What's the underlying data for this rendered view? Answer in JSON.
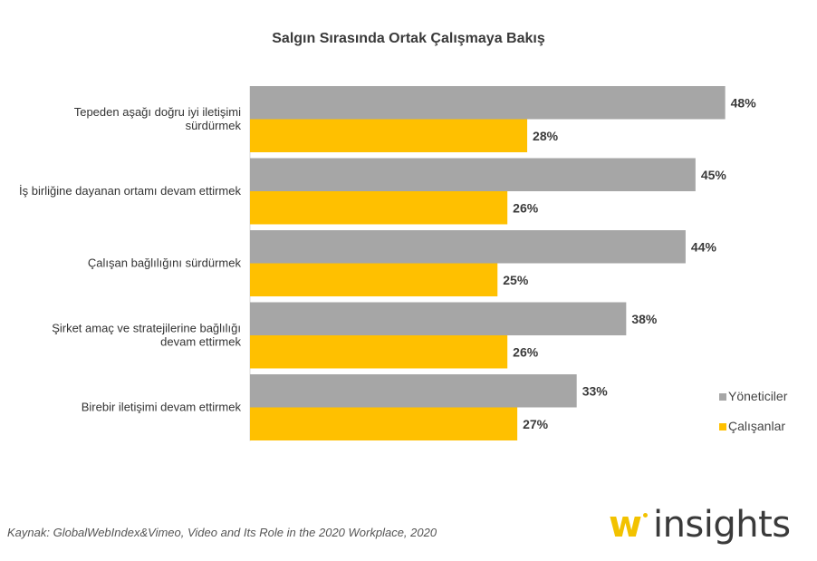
{
  "chart_data": {
    "type": "bar",
    "orientation": "horizontal",
    "title": "Salgın Sırasında Ortak Çalışmaya Bakış",
    "categories": [
      [
        "Tepeden aşağı doğru iyi iletişimi",
        "sürdürmek"
      ],
      [
        "İş birliğine dayanan ortamı devam ettirmek"
      ],
      [
        "Çalışan bağlılığını sürdürmek"
      ],
      [
        "Şirket amaç ve stratejilerine bağlılığı",
        "devam ettirmek"
      ],
      [
        "Birebir iletişimi devam ettirmek"
      ]
    ],
    "series": [
      {
        "name": "Yöneticiler",
        "color": "#A6A6A6",
        "values": [
          48,
          45,
          44,
          38,
          33
        ],
        "labels": [
          "48%",
          "45%",
          "44%",
          "38%",
          "33%"
        ]
      },
      {
        "name": "Çalışanlar",
        "color": "#FFC000",
        "values": [
          28,
          26,
          25,
          26,
          27
        ],
        "labels": [
          "28%",
          "26%",
          "25%",
          "26%",
          "27%"
        ]
      }
    ],
    "xlim": [
      0,
      50
    ],
    "xlabel": "",
    "ylabel": "",
    "grid": false,
    "legend_position": "right"
  },
  "source": "Kaynak: GlobalWebIndex&Vimeo, Video and Its Role in the 2020 Workplace, 2020",
  "brand": {
    "mark": "w",
    "name": "insights"
  }
}
